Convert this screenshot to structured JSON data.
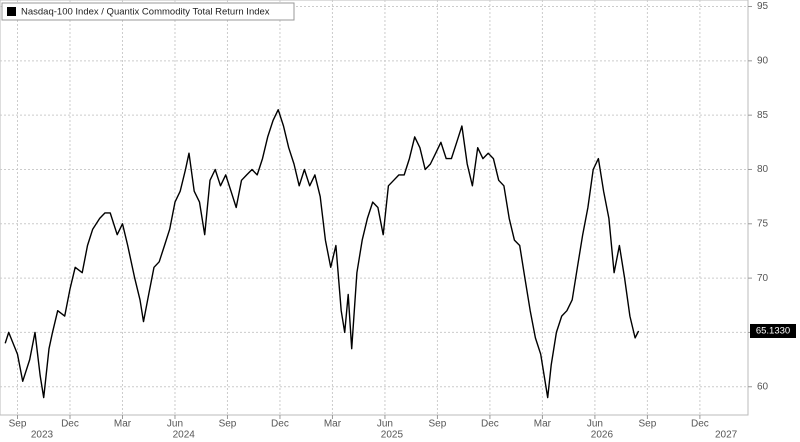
{
  "chart_data": {
    "type": "line",
    "legend": "Nasdaq-100 Index / Quantix Commodity Total Return Index",
    "color": "#000000",
    "grid": true,
    "x": [
      0.3,
      0.5,
      1,
      1.3,
      1.7,
      2,
      2.3,
      2.5,
      2.8,
      3,
      3.3,
      3.7,
      4,
      4.3,
      4.7,
      5,
      5.3,
      5.7,
      6,
      6.3,
      6.7,
      7,
      7.3,
      7.7,
      8,
      8.2,
      8.5,
      8.8,
      9.1,
      9.4,
      9.7,
      10,
      10.3,
      10.6,
      10.8,
      11.1,
      11.4,
      11.7,
      12,
      12.3,
      12.6,
      12.9,
      13.2,
      13.5,
      13.8,
      14.1,
      14.4,
      14.7,
      15,
      15.3,
      15.6,
      15.9,
      16.2,
      16.5,
      16.8,
      17.1,
      17.4,
      17.7,
      18,
      18.3,
      18.6,
      18.9,
      19.2,
      19.5,
      19.7,
      19.9,
      20.1,
      20.4,
      20.7,
      21,
      21.3,
      21.6,
      21.9,
      22.2,
      22.5,
      22.8,
      23.1,
      23.4,
      23.7,
      24,
      24.3,
      24.6,
      24.9,
      25.2,
      25.5,
      25.8,
      26.1,
      26.4,
      26.7,
      27,
      27.3,
      27.6,
      27.9,
      28.2,
      28.5,
      28.8,
      29.1,
      29.4,
      29.7,
      30,
      30.3,
      30.6,
      30.9,
      31.1,
      31.3,
      31.5,
      31.8,
      32.1,
      32.4,
      32.7,
      33,
      33.3,
      33.6,
      33.9,
      34.2,
      34.5,
      34.8,
      35.1,
      35.4,
      35.7,
      36,
      36.3,
      36.5
    ],
    "values": [
      64,
      65,
      63,
      60.5,
      62.5,
      65,
      61,
      59,
      63.5,
      65,
      67,
      66.5,
      69,
      71,
      70.5,
      73,
      74.5,
      75.5,
      76,
      76,
      74,
      75,
      73,
      70,
      68,
      66,
      68.5,
      71,
      71.5,
      73,
      74.5,
      77,
      78,
      80,
      81.5,
      78,
      77,
      74,
      79,
      80,
      78.5,
      79.5,
      78,
      76.5,
      79,
      79.5,
      80,
      79.5,
      81,
      83,
      84.5,
      85.5,
      84,
      82,
      80.5,
      78.5,
      80,
      78.5,
      79.5,
      77.5,
      73.5,
      71,
      73,
      67,
      65,
      68.5,
      63.5,
      70.5,
      73.5,
      75.5,
      77,
      76.5,
      74,
      78.5,
      79,
      79.5,
      79.5,
      81,
      83,
      82,
      80,
      80.5,
      81.5,
      82.5,
      81,
      81,
      82.5,
      84,
      80.5,
      78.5,
      82,
      81,
      81.5,
      81,
      79,
      78.5,
      75.5,
      73.5,
      73,
      70,
      67,
      64.5,
      63,
      61,
      59,
      62,
      65,
      66.5,
      67,
      68,
      71,
      74,
      76.5,
      80,
      81,
      78,
      75.5,
      70.5,
      73,
      70,
      66.5,
      64.5,
      65.133
    ],
    "last_label": "65.1330",
    "xlim": [
      0,
      42.75
    ],
    "xticks": [
      {
        "value": 1,
        "label": "Sep"
      },
      {
        "value": 4,
        "label": "Dec"
      },
      {
        "value": 7,
        "label": "Mar"
      },
      {
        "value": 10,
        "label": "Jun"
      },
      {
        "value": 13,
        "label": "Sep"
      },
      {
        "value": 16,
        "label": "Dec"
      },
      {
        "value": 19,
        "label": "Mar"
      },
      {
        "value": 22,
        "label": "Jun"
      },
      {
        "value": 25,
        "label": "Sep"
      },
      {
        "value": 28,
        "label": "Dec"
      },
      {
        "value": 31,
        "label": "Mar"
      },
      {
        "value": 34,
        "label": "Jun"
      },
      {
        "value": 37,
        "label": "Sep"
      },
      {
        "value": 40,
        "label": "Dec"
      }
    ],
    "year_ticks": [
      {
        "value": 2.4,
        "label": "2023"
      },
      {
        "value": 10.5,
        "label": "2024"
      },
      {
        "value": 22.4,
        "label": "2025"
      },
      {
        "value": 34.4,
        "label": "2026"
      },
      {
        "value": 41.5,
        "label": "2027"
      }
    ],
    "ylim": [
      57.4,
      95.6
    ],
    "yticks": [
      60,
      65,
      70,
      75,
      80,
      85,
      90,
      95
    ]
  }
}
